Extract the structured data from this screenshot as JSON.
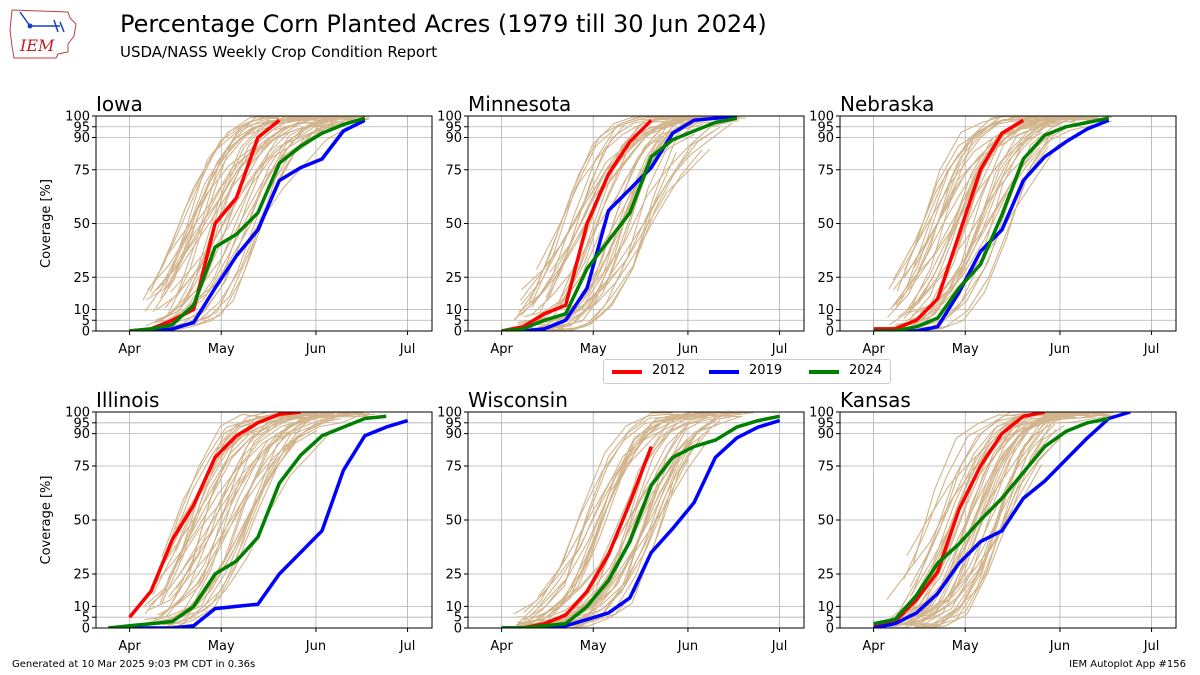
{
  "header": {
    "title": "Percentage Corn Planted Acres (1979 till 30 Jun 2024)",
    "subtitle": "USDA/NASS Weekly Crop Condition Report",
    "logo_text": "IEM"
  },
  "footer": {
    "generated": "Generated at 10 Mar 2025 9:03 PM CDT in 0.36s",
    "app": "IEM Autoplot App #156"
  },
  "colors": {
    "2012": "#ff0000",
    "2019": "#0000ff",
    "2024": "#008000",
    "history": "#d2b48c",
    "grid": "#b0b0b0"
  },
  "legend": [
    {
      "label": "2012",
      "color": "#ff0000"
    },
    {
      "label": "2019",
      "color": "#0000ff"
    },
    {
      "label": "2024",
      "color": "#008000"
    }
  ],
  "chart_data": [
    {
      "type": "line",
      "title": "Iowa",
      "ylabel": "Coverage [%]",
      "x_unit": "day of year",
      "xticks": [
        {
          "label": "Apr",
          "doy": 91
        },
        {
          "label": "May",
          "doy": 121
        },
        {
          "label": "Jun",
          "doy": 152
        },
        {
          "label": "Jul",
          "doy": 182
        }
      ],
      "yticks": [
        0,
        5,
        10,
        25,
        50,
        75,
        90,
        95,
        100
      ],
      "ylim": [
        0,
        100
      ],
      "xlim": [
        80,
        190
      ],
      "series": [
        {
          "name": "2012",
          "x": [
            91,
            98,
            105,
            112,
            119,
            126,
            133,
            140
          ],
          "y": [
            0,
            1,
            5,
            10,
            50,
            62,
            90,
            98
          ]
        },
        {
          "name": "2019",
          "x": [
            91,
            98,
            105,
            112,
            119,
            126,
            133,
            140,
            147,
            154,
            161,
            168
          ],
          "y": [
            0,
            0,
            1,
            4,
            20,
            35,
            47,
            70,
            76,
            80,
            93,
            98
          ]
        },
        {
          "name": "2024",
          "x": [
            91,
            98,
            105,
            112,
            119,
            126,
            133,
            140,
            147,
            154,
            161,
            168
          ],
          "y": [
            0,
            1,
            3,
            12,
            39,
            45,
            55,
            78,
            86,
            92,
            96,
            99
          ]
        }
      ],
      "history_pivot_doy": 120,
      "history_curves": 40
    },
    {
      "type": "line",
      "title": "Minnesota",
      "ylabel": "",
      "x_unit": "day of year",
      "xticks": [
        {
          "label": "Apr",
          "doy": 91
        },
        {
          "label": "May",
          "doy": 121
        },
        {
          "label": "Jun",
          "doy": 152
        },
        {
          "label": "Jul",
          "doy": 182
        }
      ],
      "yticks": [
        0,
        5,
        10,
        25,
        50,
        75,
        90,
        95,
        100
      ],
      "ylim": [
        0,
        100
      ],
      "xlim": [
        80,
        190
      ],
      "series": [
        {
          "name": "2012",
          "x": [
            91,
            98,
            105,
            112,
            119,
            126,
            133,
            140
          ],
          "y": [
            0,
            2,
            8,
            12,
            50,
            73,
            88,
            98
          ]
        },
        {
          "name": "2019",
          "x": [
            91,
            98,
            105,
            112,
            119,
            126,
            133,
            140,
            147,
            154,
            161,
            168
          ],
          "y": [
            0,
            0,
            1,
            5,
            20,
            56,
            66,
            76,
            92,
            98,
            99,
            100
          ]
        },
        {
          "name": "2024",
          "x": [
            91,
            98,
            105,
            112,
            119,
            126,
            133,
            140,
            147,
            154,
            161,
            168
          ],
          "y": [
            0,
            1,
            5,
            8,
            29,
            42,
            55,
            81,
            89,
            93,
            97,
            99
          ]
        }
      ],
      "history_pivot_doy": 125,
      "history_curves": 40
    },
    {
      "type": "line",
      "title": "Nebraska",
      "ylabel": "",
      "x_unit": "day of year",
      "xticks": [
        {
          "label": "Apr",
          "doy": 91
        },
        {
          "label": "May",
          "doy": 121
        },
        {
          "label": "Jun",
          "doy": 152
        },
        {
          "label": "Jul",
          "doy": 182
        }
      ],
      "yticks": [
        0,
        5,
        10,
        25,
        50,
        75,
        90,
        95,
        100
      ],
      "ylim": [
        0,
        100
      ],
      "xlim": [
        80,
        190
      ],
      "series": [
        {
          "name": "2012",
          "x": [
            91,
            98,
            105,
            112,
            119,
            126,
            133,
            140
          ],
          "y": [
            1,
            1,
            5,
            15,
            45,
            75,
            92,
            98
          ]
        },
        {
          "name": "2019",
          "x": [
            91,
            98,
            105,
            112,
            119,
            126,
            133,
            140,
            147,
            154,
            161,
            168
          ],
          "y": [
            0,
            0,
            0,
            2,
            18,
            37,
            47,
            70,
            81,
            88,
            94,
            98
          ]
        },
        {
          "name": "2024",
          "x": [
            91,
            98,
            105,
            112,
            119,
            126,
            133,
            140,
            147,
            154,
            161,
            168
          ],
          "y": [
            0,
            0,
            2,
            6,
            20,
            31,
            54,
            80,
            91,
            95,
            97,
            99
          ]
        }
      ],
      "history_pivot_doy": 121,
      "history_curves": 40
    },
    {
      "type": "line",
      "title": "Illinois",
      "ylabel": "Coverage [%]",
      "x_unit": "day of year",
      "xticks": [
        {
          "label": "Apr",
          "doy": 91
        },
        {
          "label": "May",
          "doy": 121
        },
        {
          "label": "Jun",
          "doy": 152
        },
        {
          "label": "Jul",
          "doy": 182
        }
      ],
      "yticks": [
        0,
        5,
        10,
        25,
        50,
        75,
        90,
        95,
        100
      ],
      "ylim": [
        0,
        100
      ],
      "xlim": [
        80,
        190
      ],
      "series": [
        {
          "name": "2012",
          "x": [
            91,
            98,
            105,
            112,
            119,
            126,
            133,
            140,
            147
          ],
          "y": [
            5,
            17,
            41,
            57,
            79,
            89,
            95,
            99,
            100
          ]
        },
        {
          "name": "2019",
          "x": [
            91,
            98,
            105,
            112,
            119,
            126,
            133,
            140,
            147,
            154,
            161,
            168,
            175,
            182
          ],
          "y": [
            0,
            0,
            0,
            1,
            9,
            10,
            11,
            25,
            35,
            45,
            73,
            89,
            93,
            96
          ]
        },
        {
          "name": "2024",
          "x": [
            84,
            91,
            98,
            105,
            112,
            119,
            126,
            133,
            140,
            147,
            154,
            161,
            168,
            175
          ],
          "y": [
            0,
            1,
            2,
            3,
            10,
            25,
            31,
            42,
            67,
            80,
            89,
            93,
            97,
            98
          ]
        }
      ],
      "history_pivot_doy": 121,
      "history_curves": 40
    },
    {
      "type": "line",
      "title": "Wisconsin",
      "ylabel": "",
      "x_unit": "day of year",
      "xticks": [
        {
          "label": "Apr",
          "doy": 91
        },
        {
          "label": "May",
          "doy": 121
        },
        {
          "label": "Jun",
          "doy": 152
        },
        {
          "label": "Jul",
          "doy": 182
        }
      ],
      "yticks": [
        0,
        5,
        10,
        25,
        50,
        75,
        90,
        95,
        100
      ],
      "ylim": [
        0,
        100
      ],
      "xlim": [
        80,
        190
      ],
      "series": [
        {
          "name": "2012",
          "x": [
            91,
            98,
            105,
            112,
            119,
            126,
            133,
            140
          ],
          "y": [
            0,
            0,
            2,
            6,
            17,
            34,
            58,
            84
          ]
        },
        {
          "name": "2019",
          "x": [
            91,
            98,
            105,
            112,
            119,
            126,
            133,
            140,
            147,
            154,
            161,
            168,
            175,
            182
          ],
          "y": [
            0,
            0,
            0,
            1,
            4,
            7,
            14,
            35,
            46,
            58,
            79,
            88,
            93,
            96
          ]
        },
        {
          "name": "2024",
          "x": [
            91,
            98,
            105,
            112,
            119,
            126,
            133,
            140,
            147,
            154,
            161,
            168,
            175,
            182
          ],
          "y": [
            0,
            0,
            1,
            2,
            10,
            22,
            40,
            66,
            79,
            84,
            87,
            93,
            96,
            98
          ]
        }
      ],
      "history_pivot_doy": 130,
      "history_curves": 40
    },
    {
      "type": "line",
      "title": "Kansas",
      "ylabel": "",
      "x_unit": "day of year",
      "xticks": [
        {
          "label": "Apr",
          "doy": 91
        },
        {
          "label": "May",
          "doy": 121
        },
        {
          "label": "Jun",
          "doy": 152
        },
        {
          "label": "Jul",
          "doy": 182
        }
      ],
      "yticks": [
        0,
        5,
        10,
        25,
        50,
        75,
        90,
        95,
        100
      ],
      "ylim": [
        0,
        100
      ],
      "xlim": [
        80,
        190
      ],
      "series": [
        {
          "name": "2012",
          "x": [
            91,
            98,
            105,
            112,
            119,
            126,
            133,
            140,
            147
          ],
          "y": [
            1,
            3,
            13,
            26,
            55,
            75,
            90,
            98,
            100
          ]
        },
        {
          "name": "2019",
          "x": [
            91,
            98,
            105,
            112,
            119,
            126,
            133,
            140,
            147,
            154,
            161,
            168,
            175
          ],
          "y": [
            0,
            2,
            7,
            16,
            30,
            40,
            45,
            60,
            68,
            78,
            88,
            97,
            100
          ]
        },
        {
          "name": "2024",
          "x": [
            91,
            98,
            105,
            112,
            119,
            126,
            133,
            140,
            147,
            154,
            161,
            168
          ],
          "y": [
            2,
            4,
            15,
            30,
            39,
            50,
            60,
            72,
            84,
            91,
            95,
            97
          ]
        }
      ],
      "history_pivot_doy": 122,
      "history_curves": 40
    }
  ]
}
